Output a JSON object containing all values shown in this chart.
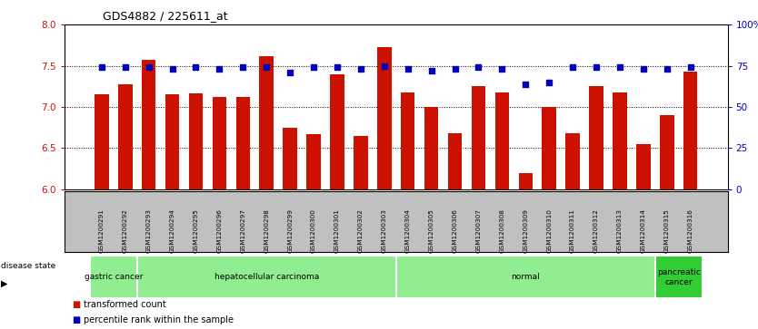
{
  "title": "GDS4882 / 225611_at",
  "samples": [
    "GSM1200291",
    "GSM1200292",
    "GSM1200293",
    "GSM1200294",
    "GSM1200295",
    "GSM1200296",
    "GSM1200297",
    "GSM1200298",
    "GSM1200299",
    "GSM1200300",
    "GSM1200301",
    "GSM1200302",
    "GSM1200303",
    "GSM1200304",
    "GSM1200305",
    "GSM1200306",
    "GSM1200307",
    "GSM1200308",
    "GSM1200309",
    "GSM1200310",
    "GSM1200311",
    "GSM1200312",
    "GSM1200313",
    "GSM1200314",
    "GSM1200315",
    "GSM1200316"
  ],
  "bar_values": [
    7.15,
    7.27,
    7.57,
    7.15,
    7.17,
    7.12,
    7.12,
    7.62,
    6.75,
    6.67,
    7.4,
    6.65,
    7.73,
    7.18,
    7.0,
    6.68,
    7.25,
    7.18,
    6.2,
    7.0,
    6.68,
    7.25,
    7.18,
    6.55,
    6.9,
    7.43
  ],
  "percentile_values": [
    74,
    74,
    74,
    73,
    74,
    73,
    74,
    74,
    71,
    74,
    74,
    73,
    75,
    73,
    72,
    73,
    74,
    73,
    64,
    65,
    74,
    74,
    74,
    73,
    73,
    74
  ],
  "groups": [
    {
      "label": "gastric cancer",
      "start": 0,
      "end": 2,
      "color": "#90EE90"
    },
    {
      "label": "hepatocellular carcinoma",
      "start": 2,
      "end": 13,
      "color": "#90EE90"
    },
    {
      "label": "normal",
      "start": 13,
      "end": 24,
      "color": "#90EE90"
    },
    {
      "label": "pancreatic\ncancer",
      "start": 24,
      "end": 26,
      "color": "#32CD32"
    }
  ],
  "bar_color": "#CC1100",
  "percentile_color": "#0000BB",
  "ylim_left": [
    6.0,
    8.0
  ],
  "ylim_right": [
    0,
    100
  ],
  "yticks_left": [
    6.0,
    6.5,
    7.0,
    7.5,
    8.0
  ],
  "yticks_right": [
    0,
    25,
    50,
    75,
    100
  ],
  "ytick_labels_right": [
    "0",
    "25",
    "50",
    "75",
    "100%"
  ],
  "left_tick_color": "#CC1100",
  "right_tick_color": "#0000BB",
  "gridline_y": [
    6.5,
    7.0,
    7.5
  ],
  "xtick_bg_color": "#C0C0C0",
  "disease_state_label": "disease state",
  "legend_items": [
    {
      "color": "#CC1100",
      "label": "transformed count"
    },
    {
      "color": "#0000BB",
      "label": "percentile rank within the sample"
    }
  ]
}
